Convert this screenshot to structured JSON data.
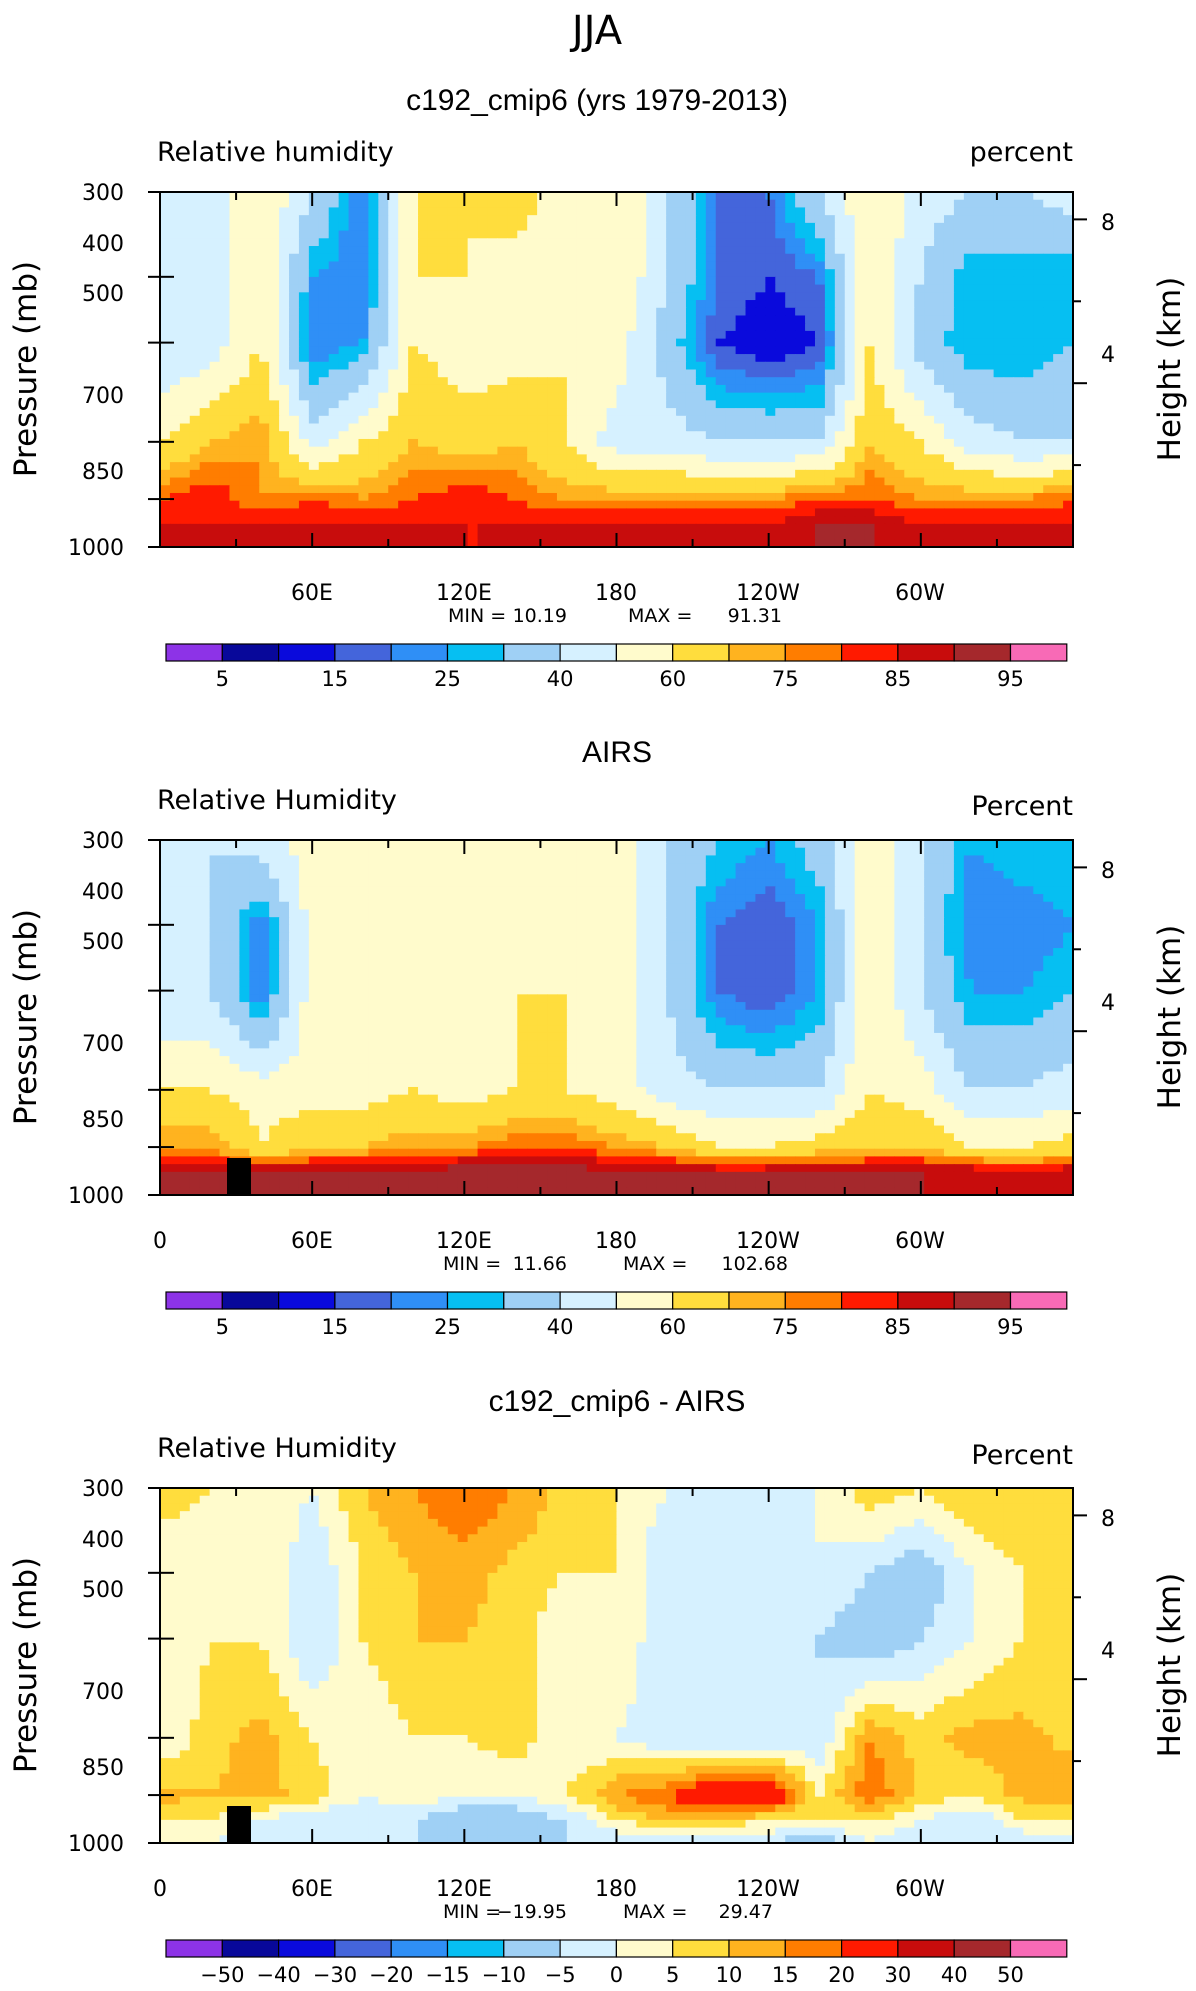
{
  "season": "JJA",
  "colorbars": {
    "full": {
      "colors": [
        "#8d33e7",
        "#08089a",
        "#0a0adc",
        "#4465db",
        "#2f8ff6",
        "#06bff2",
        "#9fd0f5",
        "#d6f1ff",
        "#fffbcc",
        "#ffdd3d",
        "#ffb31f",
        "#ff7d00",
        "#ff1a00",
        "#c80c0c",
        "#a5282c",
        "#f86ab6"
      ],
      "labels": [
        {
          "slot": 1,
          "text": "5"
        },
        {
          "slot": 3,
          "text": "15"
        },
        {
          "slot": 5,
          "text": "25"
        },
        {
          "slot": 7,
          "text": "40"
        },
        {
          "slot": 9,
          "text": "60"
        },
        {
          "slot": 11,
          "text": "75"
        },
        {
          "slot": 13,
          "text": "85"
        },
        {
          "slot": 15,
          "text": "95"
        }
      ]
    },
    "diff": {
      "colors": [
        "#8d33e7",
        "#08089a",
        "#0a0adc",
        "#4465db",
        "#2f8ff6",
        "#06bff2",
        "#9fd0f5",
        "#d6f1ff",
        "#fffbcc",
        "#ffdd3d",
        "#ffb31f",
        "#ff7d00",
        "#ff1a00",
        "#c80c0c",
        "#a5282c",
        "#f86ab6"
      ],
      "labels": [
        {
          "slot": 1,
          "text": "−50"
        },
        {
          "slot": 2,
          "text": "−40"
        },
        {
          "slot": 3,
          "text": "−30"
        },
        {
          "slot": 4,
          "text": "−20"
        },
        {
          "slot": 5,
          "text": "−15"
        },
        {
          "slot": 6,
          "text": "−10"
        },
        {
          "slot": 7,
          "text": "−5"
        },
        {
          "slot": 8,
          "text": "0"
        },
        {
          "slot": 9,
          "text": "5"
        },
        {
          "slot": 10,
          "text": "10"
        },
        {
          "slot": 11,
          "text": "15"
        },
        {
          "slot": 12,
          "text": "20"
        },
        {
          "slot": 13,
          "text": "30"
        },
        {
          "slot": 14,
          "text": "40"
        },
        {
          "slot": 15,
          "text": "50"
        }
      ]
    }
  },
  "chart_data": [
    {
      "type": "heatmap",
      "title": "c192_cmip6 (yrs 1979-2013)",
      "left_label": "Relative humidity",
      "right_label": "percent",
      "ylabel": "Pressure (mb)",
      "ylabel_right": "Height (km)",
      "y_ticks": [
        "300",
        "400",
        "500",
        "700",
        "850",
        "1000"
      ],
      "y_ticks_right": [
        "8",
        "4"
      ],
      "x_ticks": [
        "60E",
        "120E",
        "180",
        "120W",
        "60W"
      ],
      "min_label": "MIN =",
      "min_value": "10.19",
      "max_label": "MAX =",
      "max_value": "91.31",
      "colorbar": "full",
      "x": [
        0,
        20,
        40,
        60,
        80,
        100,
        120,
        140,
        160,
        180,
        200,
        220,
        240,
        260,
        280,
        300,
        320,
        340,
        360
      ],
      "pressure": [
        300,
        400,
        500,
        700,
        850,
        925,
        1000
      ],
      "bands": [
        [
          40,
          45,
          60,
          40,
          20,
          60,
          60,
          65,
          55,
          60,
          40,
          20,
          20,
          40,
          60,
          45,
          40,
          40,
          45
        ],
        [
          40,
          45,
          60,
          25,
          20,
          60,
          60,
          55,
          55,
          60,
          40,
          20,
          15,
          20,
          60,
          40,
          25,
          25,
          25
        ],
        [
          40,
          45,
          60,
          20,
          25,
          60,
          55,
          55,
          60,
          55,
          35,
          15,
          10,
          15,
          60,
          35,
          25,
          25,
          30
        ],
        [
          60,
          70,
          75,
          45,
          60,
          70,
          65,
          70,
          60,
          45,
          45,
          40,
          40,
          40,
          70,
          60,
          45,
          40,
          40
        ],
        [
          80,
          85,
          75,
          80,
          75,
          80,
          85,
          80,
          75,
          75,
          75,
          75,
          75,
          80,
          80,
          75,
          75,
          75,
          80
        ],
        [
          85,
          85,
          85,
          85,
          85,
          85,
          85,
          85,
          85,
          85,
          85,
          85,
          85,
          90,
          90,
          85,
          85,
          85,
          85
        ],
        [
          85,
          90,
          85,
          85,
          85,
          85,
          85,
          85,
          85,
          85,
          85,
          90,
          90,
          90,
          90,
          85,
          85,
          85,
          90
        ]
      ]
    },
    {
      "type": "heatmap",
      "title": "AIRS",
      "left_label": "Relative Humidity",
      "right_label": "Percent",
      "ylabel": "Pressure (mb)",
      "ylabel_right": "Height (km)",
      "y_ticks": [
        "300",
        "400",
        "500",
        "700",
        "850",
        "1000"
      ],
      "y_ticks_right": [
        "8",
        "4"
      ],
      "x_ticks": [
        "0",
        "60E",
        "120E",
        "180",
        "120W",
        "60W"
      ],
      "min_label": "MIN =",
      "min_value": "11.66",
      "max_label": "MAX =",
      "max_value": "102.68",
      "colorbar": "full",
      "x": [
        0,
        20,
        40,
        60,
        80,
        100,
        120,
        140,
        160,
        180,
        200,
        220,
        240,
        260,
        280,
        300,
        320,
        340,
        360
      ],
      "pressure": [
        300,
        400,
        500,
        700,
        850,
        925,
        1000
      ],
      "bands": [
        [
          40,
          40,
          45,
          55,
          60,
          60,
          55,
          55,
          60,
          55,
          40,
          30,
          25,
          35,
          60,
          40,
          25,
          30,
          30
        ],
        [
          40,
          40,
          20,
          55,
          60,
          55,
          55,
          60,
          55,
          55,
          40,
          20,
          15,
          25,
          60,
          40,
          20,
          20,
          25
        ],
        [
          40,
          40,
          20,
          55,
          55,
          55,
          55,
          60,
          60,
          55,
          40,
          20,
          15,
          25,
          60,
          40,
          25,
          25,
          30
        ],
        [
          60,
          60,
          55,
          55,
          55,
          60,
          55,
          60,
          60,
          55,
          45,
          40,
          40,
          40,
          60,
          55,
          40,
          40,
          45
        ],
        [
          75,
          75,
          60,
          70,
          70,
          75,
          75,
          80,
          80,
          75,
          70,
          60,
          60,
          65,
          70,
          70,
          60,
          60,
          65
        ],
        [
          90,
          90,
          90,
          90,
          90,
          90,
          95,
          95,
          95,
          90,
          90,
          90,
          90,
          90,
          90,
          90,
          90,
          85,
          90
        ],
        [
          90,
          90,
          90,
          90,
          90,
          90,
          90,
          95,
          90,
          90,
          90,
          90,
          95,
          95,
          90,
          90,
          85,
          85,
          90
        ]
      ]
    },
    {
      "type": "heatmap",
      "title": "c192_cmip6 - AIRS",
      "left_label": "Relative Humidity",
      "right_label": "Percent",
      "ylabel": "Pressure (mb)",
      "ylabel_right": "Height (km)",
      "y_ticks": [
        "300",
        "400",
        "500",
        "700",
        "850",
        "1000"
      ],
      "y_ticks_right": [
        "8",
        "4"
      ],
      "x_ticks": [
        "0",
        "60E",
        "120E",
        "180",
        "120W",
        "60W"
      ],
      "min_label": "MIN =",
      "min_value": "−19.95",
      "max_label": "MAX =",
      "max_value": "29.47",
      "colorbar": "diff",
      "x": [
        0,
        20,
        40,
        60,
        80,
        100,
        120,
        140,
        160,
        180,
        200,
        220,
        240,
        260,
        280,
        300,
        320,
        340,
        360
      ],
      "pressure": [
        300,
        400,
        500,
        700,
        850,
        925,
        1000
      ],
      "bands": [
        [
          8,
          5,
          5,
          0,
          10,
          15,
          20,
          15,
          8,
          5,
          0,
          -5,
          -5,
          0,
          8,
          5,
          10,
          10,
          10
        ],
        [
          0,
          0,
          5,
          -5,
          5,
          10,
          12,
          8,
          5,
          5,
          -5,
          -5,
          0,
          0,
          -5,
          -10,
          0,
          5,
          8
        ],
        [
          0,
          5,
          5,
          -5,
          5,
          10,
          10,
          8,
          0,
          5,
          -5,
          -5,
          -5,
          -5,
          -10,
          -5,
          0,
          5,
          5
        ],
        [
          0,
          8,
          12,
          5,
          0,
          5,
          5,
          8,
          0,
          0,
          -5,
          -5,
          -5,
          -5,
          15,
          8,
          12,
          12,
          8
        ],
        [
          12,
          10,
          12,
          8,
          0,
          5,
          0,
          0,
          5,
          15,
          20,
          30,
          30,
          5,
          20,
          8,
          5,
          12,
          15
        ],
        [
          5,
          5,
          0,
          -5,
          -5,
          -5,
          -10,
          -10,
          -5,
          5,
          10,
          10,
          5,
          5,
          5,
          0,
          -5,
          5,
          5
        ],
        [
          0,
          0,
          -5,
          -5,
          -5,
          -5,
          -5,
          -5,
          -5,
          -5,
          -5,
          -5,
          -5,
          -10,
          0,
          -5,
          -5,
          -5,
          -5
        ]
      ]
    }
  ]
}
